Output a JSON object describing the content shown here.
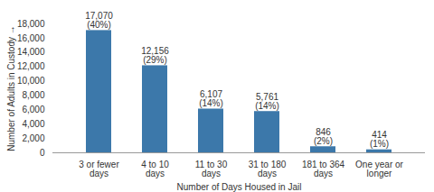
{
  "chart_data": {
    "type": "bar",
    "categories": [
      "3 or fewer days",
      "4 to 10 days",
      "11 to 30 days",
      "31 to 180 days",
      "181 to 364 days",
      "One year or longer"
    ],
    "values": [
      17070,
      12156,
      6107,
      5761,
      846,
      414
    ],
    "value_labels": [
      "17,070\n(40%)",
      "12,156\n(29%)",
      "6,107\n(14%)",
      "5,761\n(14%)",
      "846\n(2%)",
      "414\n(1%)"
    ],
    "data_labels": true,
    "color": "#3c78aa",
    "x_label": "Number of Days Housed in Jail",
    "y_label": "Number of Adults in Custody",
    "ylim": [
      0,
      18000
    ],
    "yticks": [
      0,
      {
        "value": 2000,
        "label": "2,000"
      },
      {
        "value": 4000,
        "label": "4,000"
      },
      {
        "value": 6000,
        "label": "6,000"
      },
      {
        "value": 8000,
        "label": "8,000"
      },
      {
        "value": 10000,
        "label": "10,000"
      },
      {
        "value": 12000,
        "label": "12,000"
      },
      {
        "value": 14000,
        "label": "14,000"
      },
      {
        "value": 16000,
        "label": "16,000"
      },
      {
        "value": 18000,
        "label": "18,000"
      }
    ],
    "grid": false
  }
}
